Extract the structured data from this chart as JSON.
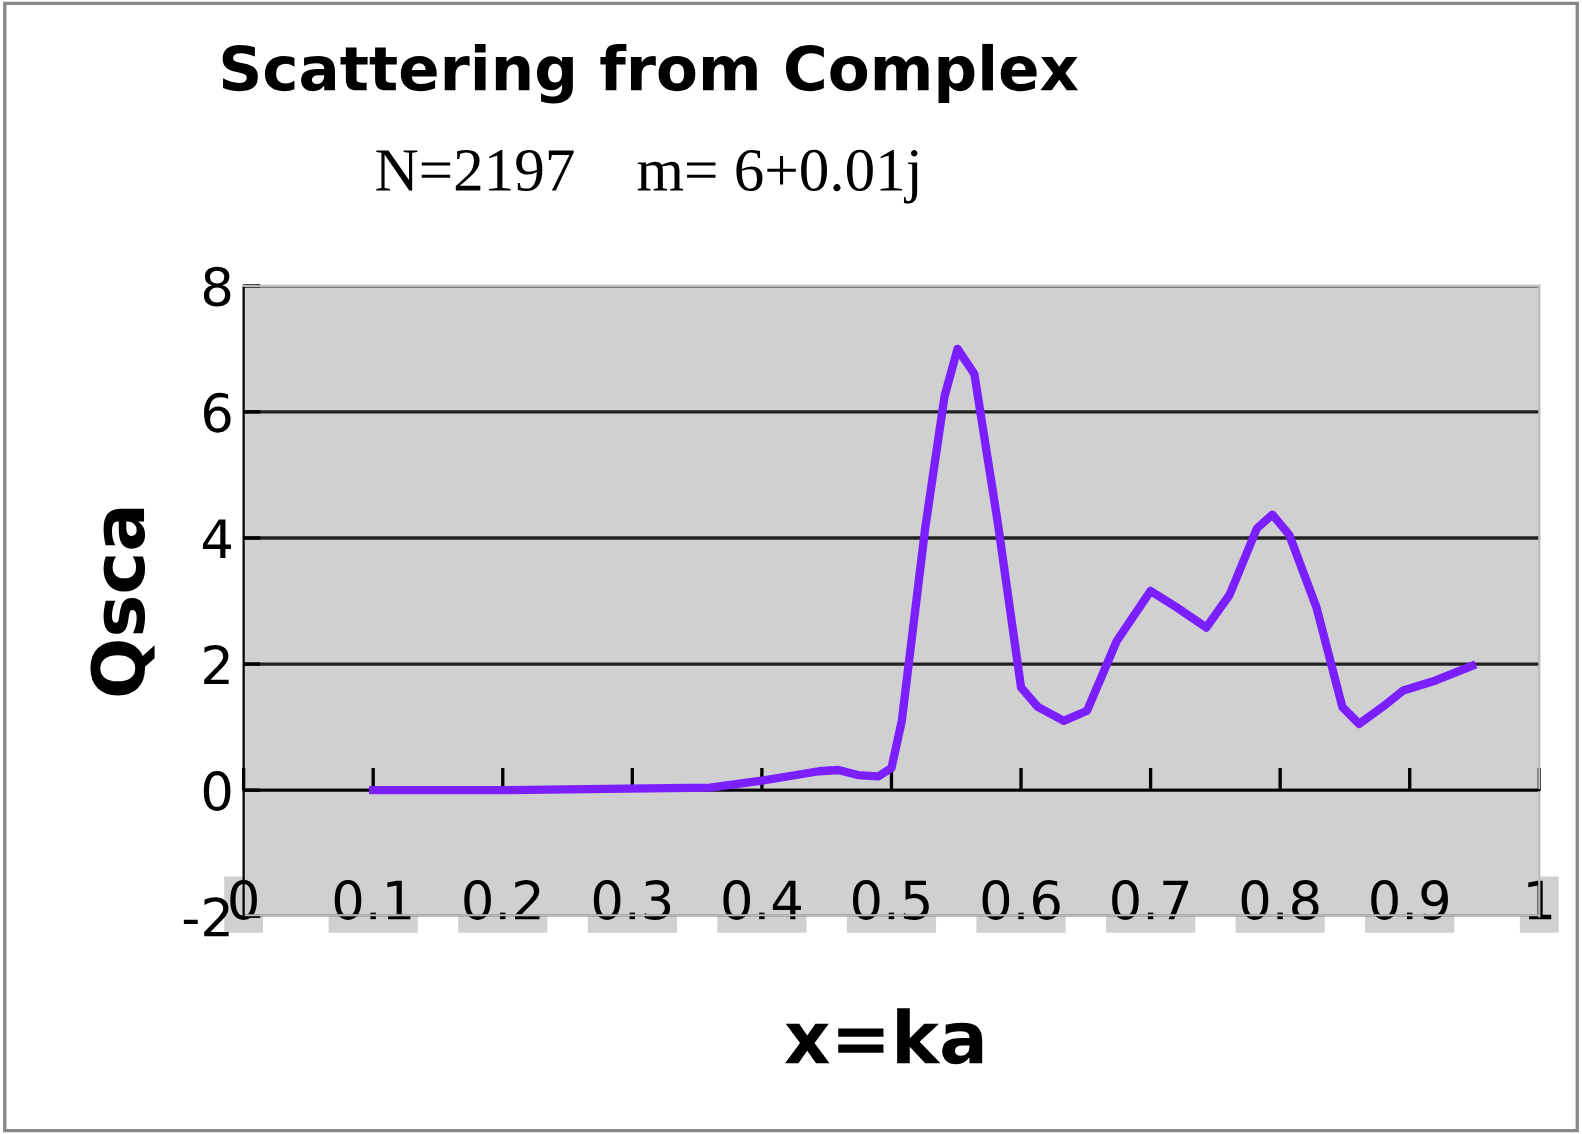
{
  "chart_data": {
    "type": "line",
    "title": "Scattering from Complex",
    "subtitle": "N=2197    m= 6+0.01j",
    "xlabel": "x=ka",
    "ylabel": "Qsca",
    "series": [
      {
        "color": "#7b1fff",
        "x": [
          0.1,
          0.2,
          0.28,
          0.36,
          0.4,
          0.444,
          0.459,
          0.474,
          0.49,
          0.5,
          0.508,
          0.526,
          0.541,
          0.551,
          0.564,
          0.582,
          0.6,
          0.613,
          0.633,
          0.651,
          0.674,
          0.7,
          0.72,
          0.743,
          0.761,
          0.782,
          0.794,
          0.807,
          0.828,
          0.848,
          0.861,
          0.879,
          0.895,
          0.92,
          0.948
        ],
        "values": [
          0,
          0,
          0.02,
          0.04,
          0.15,
          0.3,
          0.32,
          0.24,
          0.22,
          0.35,
          1.1,
          4.15,
          6.25,
          7.0,
          6.6,
          4.25,
          1.63,
          1.32,
          1.1,
          1.26,
          2.37,
          3.16,
          2.9,
          2.58,
          3.1,
          4.15,
          4.37,
          4.05,
          2.9,
          1.32,
          1.05,
          1.32,
          1.58,
          1.74,
          1.97
        ]
      }
    ],
    "xlim": [
      0,
      1
    ],
    "ylim": [
      -2,
      8
    ],
    "xticks": [
      0,
      0.1,
      0.2,
      0.3,
      0.4,
      0.5,
      0.6,
      0.7,
      0.8,
      0.9,
      1
    ],
    "yticks": [
      -2,
      0,
      2,
      4,
      6,
      8
    ],
    "grid": "y",
    "legend": false,
    "marker": "none",
    "line_style": "solid"
  }
}
